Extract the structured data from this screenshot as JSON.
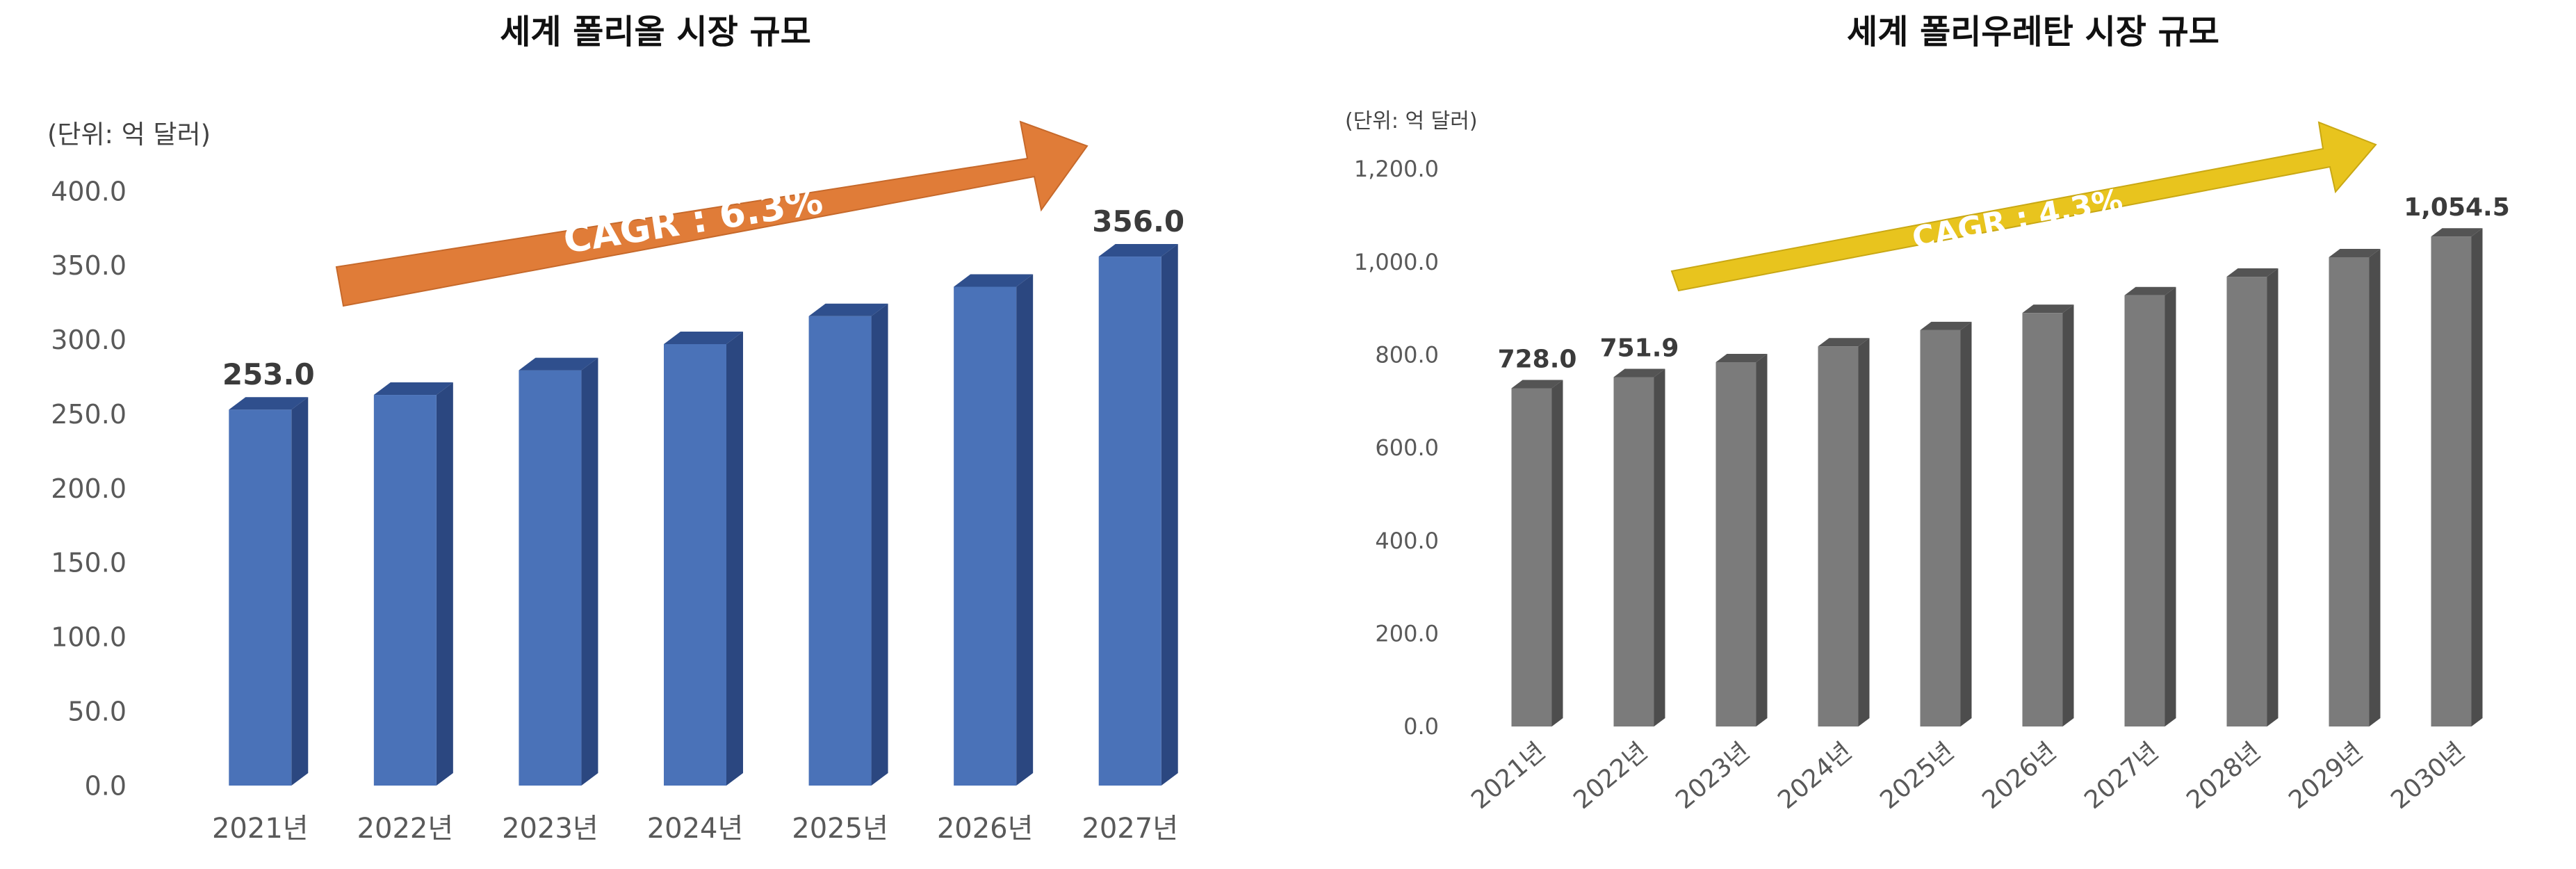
{
  "charts": [
    {
      "title": "세계 폴리올 시장 규모",
      "unit": "(단위: 억 달러)",
      "cagr": "CAGR : 6.3%",
      "colors": {
        "bar_front": "#4a72b8",
        "bar_side": "#2b4780",
        "bar_top": "#2f4f8d",
        "arrow": "#e07c38"
      },
      "chart_data": {
        "type": "bar",
        "categories": [
          "2021년",
          "2022년",
          "2023년",
          "2024년",
          "2025년",
          "2026년",
          "2027년"
        ],
        "values": [
          253.0,
          262.9,
          279.5,
          297.1,
          315.9,
          335.7,
          356.0
        ],
        "data_labels": [
          "253.0",
          "",
          "",
          "",
          "",
          "",
          "356.0"
        ],
        "yticks": [
          "0.0",
          "50.0",
          "100.0",
          "150.0",
          "200.0",
          "250.0",
          "300.0",
          "350.0",
          "400.0"
        ],
        "ylim": [
          0,
          400
        ],
        "grid": false,
        "legend": "none"
      }
    },
    {
      "title": "세계 폴리우레탄 시장 규모",
      "unit": "(단위: 억 달러)",
      "cagr": "CAGR : 4.3%",
      "colors": {
        "bar_front": "#7b7b7b",
        "bar_side": "#4d4d4d",
        "bar_top": "#545454",
        "arrow": "#e8c41e"
      },
      "chart_data": {
        "type": "bar",
        "categories": [
          "2021년",
          "2022년",
          "2023년",
          "2024년",
          "2025년",
          "2026년",
          "2027년",
          "2028년",
          "2029년",
          "2030년"
        ],
        "values": [
          728.0,
          751.9,
          784.0,
          818.0,
          853.0,
          890.0,
          928.0,
          968.0,
          1010.0,
          1054.5
        ],
        "data_labels": [
          "728.0",
          "751.9",
          "",
          "",
          "",
          "",
          "",
          "",
          "",
          "1,054.5"
        ],
        "yticks": [
          "0.0",
          "200.0",
          "400.0",
          "600.0",
          "800.0",
          "1,000.0",
          "1,200.0"
        ],
        "ylim": [
          0,
          1200
        ],
        "grid": false,
        "legend": "none"
      }
    }
  ]
}
